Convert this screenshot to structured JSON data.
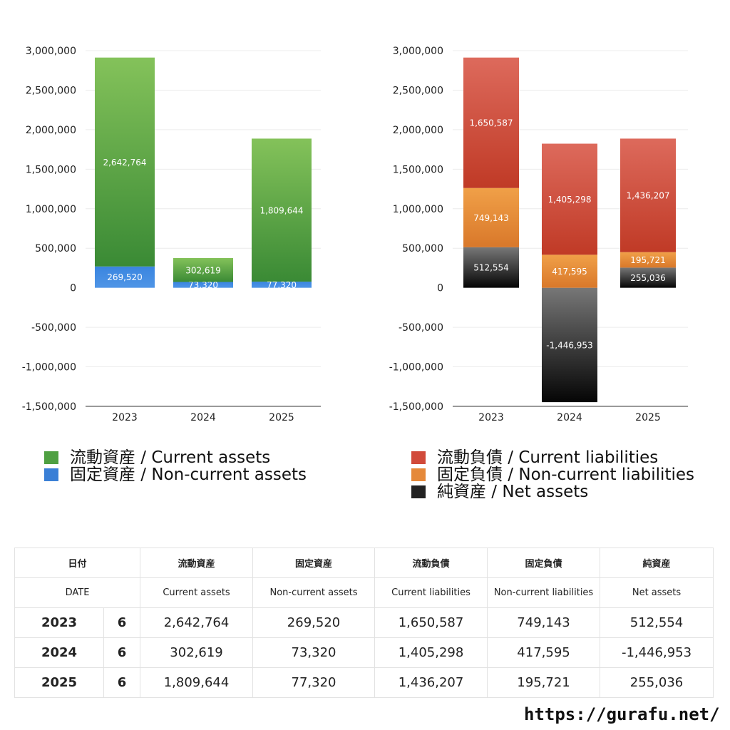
{
  "chart_data": [
    {
      "type": "bar",
      "stacked": true,
      "categories": [
        "2023",
        "2024",
        "2025"
      ],
      "ylim": [
        -1500000,
        3000000
      ],
      "yticks": [
        "3,000,000",
        "2,500,000",
        "2,000,000",
        "1,500,000",
        "1,000,000",
        "500,000",
        "0",
        "-500,000",
        "-1,000,000",
        "-1,500,000"
      ],
      "grid": true,
      "legend_position": "bottom",
      "series": [
        {
          "name": "固定資産 / Non-current assets",
          "values": [
            269520,
            73320,
            77320
          ],
          "labels": [
            "269,520",
            "73,320",
            "77,320"
          ],
          "color": "#3a85e0",
          "color_dark": "#4f95e6"
        },
        {
          "name": "流動資産 / Current assets",
          "values": [
            2642764,
            302619,
            1809644
          ],
          "labels": [
            "2,642,764",
            "302,619",
            "1,809,644"
          ],
          "color": "#84c25a",
          "color_dark": "#3a8a35"
        }
      ]
    },
    {
      "type": "bar",
      "stacked": true,
      "categories": [
        "2023",
        "2024",
        "2025"
      ],
      "ylim": [
        -1500000,
        3000000
      ],
      "yticks": [
        "3,000,000",
        "2,500,000",
        "2,000,000",
        "1,500,000",
        "1,000,000",
        "500,000",
        "0",
        "-500,000",
        "-1,000,000",
        "-1,500,000"
      ],
      "grid": true,
      "legend_position": "bottom",
      "series": [
        {
          "name": "純資産 / Net assets",
          "values": [
            512554,
            -1446953,
            255036
          ],
          "labels": [
            "512,554",
            "-1,446,953",
            "255,036"
          ],
          "color": "#777777",
          "color_dark": "#050505"
        },
        {
          "name": "固定負債 / Non-current liabilities",
          "values": [
            749143,
            417595,
            195721
          ],
          "labels": [
            "749,143",
            "417,595",
            "195,721"
          ],
          "color": "#f0a048",
          "color_dark": "#d9782a"
        },
        {
          "name": "流動負債 / Current liabilities",
          "values": [
            1650587,
            1405298,
            1436207
          ],
          "labels": [
            "1,650,587",
            "1,405,298",
            "1,436,207"
          ],
          "color": "#dd6a5c",
          "color_dark": "#c03a26"
        }
      ]
    }
  ],
  "legend_left": [
    {
      "label": "流動資産 / Current assets",
      "color": "#4fa042"
    },
    {
      "label": "固定資産 / Non-current assets",
      "color": "#3a7fd6"
    }
  ],
  "legend_right": [
    {
      "label": "流動負債 / Current liabilities",
      "color": "#d14a3a"
    },
    {
      "label": "固定負債 / Non-current liabilities",
      "color": "#e5893a"
    },
    {
      "label": "純資産 / Net assets",
      "color": "#222222"
    }
  ],
  "table": {
    "header_jp": [
      "日付",
      "流動資産",
      "固定資産",
      "流動負債",
      "固定負債",
      "純資産"
    ],
    "header_en": [
      "DATE",
      "Current assets",
      "Non-current assets",
      "Current liabilities",
      "Non-current liabilities",
      "Net assets"
    ],
    "rows": [
      {
        "year": "2023",
        "month": "6",
        "cells": [
          "2,642,764",
          "269,520",
          "1,650,587",
          "749,143",
          "512,554"
        ]
      },
      {
        "year": "2024",
        "month": "6",
        "cells": [
          "302,619",
          "73,320",
          "1,405,298",
          "417,595",
          "-1,446,953"
        ]
      },
      {
        "year": "2025",
        "month": "6",
        "cells": [
          "1,809,644",
          "77,320",
          "1,436,207",
          "195,721",
          "255,036"
        ]
      }
    ]
  },
  "url": "https://gurafu.net/"
}
